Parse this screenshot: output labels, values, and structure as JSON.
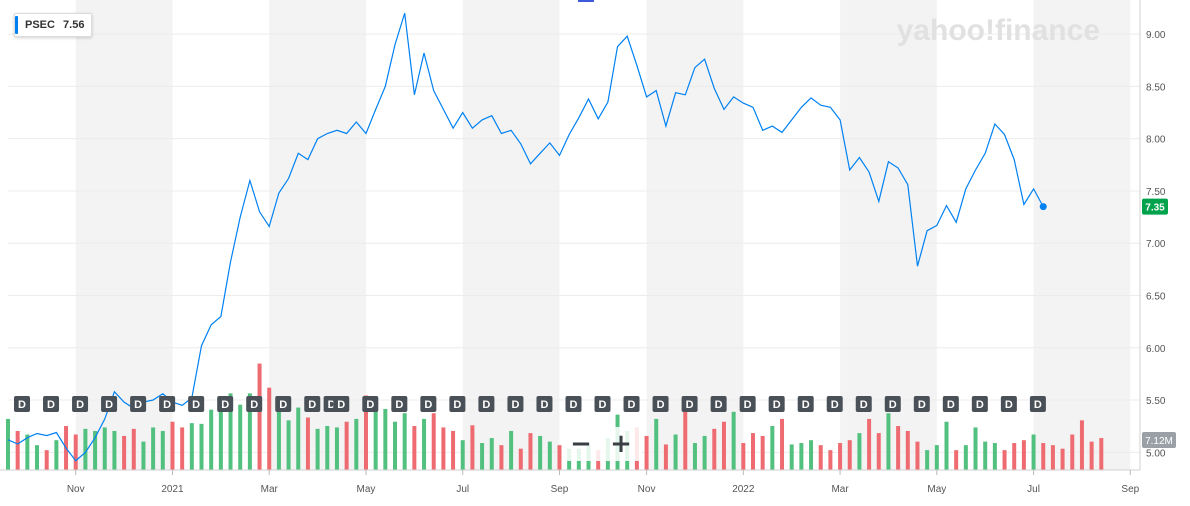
{
  "legend": {
    "symbol": "PSEC",
    "value": "7.56"
  },
  "watermark": "yahoo!finance",
  "last_price_label": "7.35",
  "volume_label": "7.12M",
  "dividend_marker_label": "D",
  "zoom": {
    "out_label": "−",
    "in_label": "+"
  },
  "colors": {
    "line": "#0081f2",
    "up_volume": "#52c07f",
    "down_volume": "#ef6b72",
    "price_tag": "#00a34c",
    "band": "#f3f3f3",
    "grid": "#ececec",
    "dividend": "#4a5057"
  },
  "chart_data": {
    "type": "line",
    "y_ticks": [
      "9.00",
      "8.50",
      "8.00",
      "7.50",
      "7.00",
      "6.50",
      "6.00",
      "5.50",
      "5.00"
    ],
    "ylim": [
      4.85,
      9.25
    ],
    "x_ticks": [
      "Nov",
      "2021",
      "Mar",
      "May",
      "Jul",
      "Sep",
      "Nov",
      "2022",
      "Mar",
      "May",
      "Jul",
      "Sep"
    ],
    "xlim": [
      0,
      117
    ],
    "x_tick_positions": [
      7,
      17,
      27,
      37,
      47,
      57,
      66,
      76,
      86,
      96,
      106,
      116
    ],
    "series": [
      {
        "values": [
          5.12,
          5.08,
          5.14,
          5.18,
          5.16,
          5.19,
          5.04,
          4.92,
          5.0,
          5.14,
          5.32,
          5.58,
          5.48,
          5.42,
          5.48,
          5.5,
          5.56,
          5.48,
          5.45,
          5.52,
          6.02,
          6.22,
          6.3,
          6.82,
          7.25,
          7.6,
          7.3,
          7.16,
          7.48,
          7.62,
          7.86,
          7.8,
          8.0,
          8.05,
          8.08,
          8.05,
          8.16,
          8.05,
          8.28,
          8.5,
          8.9,
          9.2,
          8.42,
          8.82,
          8.46,
          8.28,
          8.1,
          8.25,
          8.1,
          8.18,
          8.22,
          8.05,
          8.08,
          7.95,
          7.76,
          7.86,
          7.96,
          7.84,
          8.04,
          8.2,
          8.38,
          8.19,
          8.35,
          8.88,
          8.98,
          8.7,
          8.4,
          8.46,
          8.12,
          8.44,
          8.42,
          8.68,
          8.76,
          8.48,
          8.28,
          8.4,
          8.34,
          8.3,
          8.08,
          8.12,
          8.06,
          8.18,
          8.3,
          8.39,
          8.32,
          8.3,
          8.18,
          7.7,
          7.82,
          7.68,
          7.4,
          7.78,
          7.72,
          7.56,
          6.78,
          7.12,
          7.17,
          7.36,
          7.2,
          7.52,
          7.7,
          7.86,
          8.14,
          8.04,
          7.8,
          7.37,
          7.52,
          7.35
        ]
      },
      {
        "name": "Volume",
        "values": [
          0.72,
          0.55,
          0.5,
          0.35,
          0.28,
          0.42,
          0.62,
          0.5,
          0.58,
          0.55,
          0.6,
          0.55,
          0.48,
          0.58,
          0.4,
          0.6,
          0.55,
          0.68,
          0.6,
          0.66,
          0.65,
          0.85,
          0.98,
          1.08,
          0.92,
          1.08,
          1.5,
          1.16,
          0.82,
          0.7,
          0.88,
          0.74,
          0.58,
          0.62,
          0.6,
          0.68,
          0.72,
          1.05,
          1.0,
          0.86,
          0.68,
          0.8,
          0.62,
          0.72,
          0.8,
          0.6,
          0.55,
          0.42,
          0.63,
          0.38,
          0.45,
          0.35,
          0.55,
          0.3,
          0.52,
          0.48,
          0.4,
          0.35,
          0.3,
          0.3,
          0.35,
          0.28,
          0.45,
          0.78,
          0.55,
          0.6,
          0.48,
          0.72,
          0.36,
          0.5,
          0.88,
          0.38,
          0.48,
          0.58,
          0.68,
          0.82,
          0.38,
          0.52,
          0.48,
          0.62,
          0.72,
          0.36,
          0.38,
          0.42,
          0.35,
          0.28,
          0.38,
          0.42,
          0.52,
          0.72,
          0.52,
          0.8,
          0.62,
          0.55,
          0.4,
          0.28,
          0.35,
          0.68,
          0.28,
          0.35,
          0.6,
          0.4,
          0.38,
          0.28,
          0.38,
          0.42,
          0.5,
          0.38,
          0.35,
          0.3,
          0.5,
          0.7,
          0.4,
          0.45
        ]
      }
    ],
    "dividend_x": [
      0,
      3,
      6,
      9,
      12,
      15,
      18,
      21,
      24,
      27,
      30,
      32,
      33,
      36,
      39,
      42,
      45,
      48,
      51,
      54,
      57,
      60,
      63,
      66,
      69,
      72,
      75,
      78,
      81,
      84,
      87,
      90,
      93,
      96,
      99,
      102,
      105
    ],
    "watermark_position": "top-right"
  }
}
